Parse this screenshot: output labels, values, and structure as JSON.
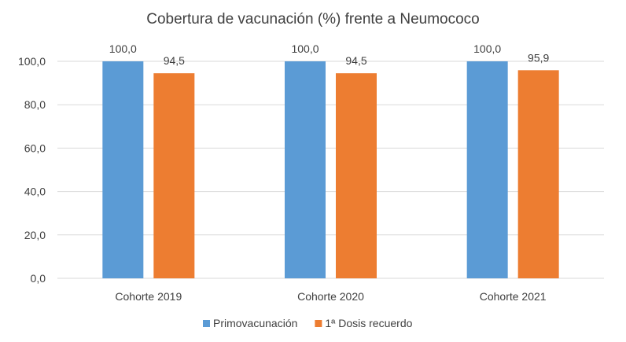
{
  "chart_data": {
    "type": "bar",
    "title": "Cobertura de vacunación (%) frente a Neumococo",
    "xlabel": "",
    "ylabel": "",
    "categories": [
      "Cohorte 2019",
      "Cohorte 2020",
      "Cohorte 2021"
    ],
    "series": [
      {
        "name": "Primovacunación",
        "values": [
          100.0,
          100.0,
          100.0
        ],
        "labels": [
          "100,0",
          "100,0",
          "100,0"
        ],
        "color": "#5B9BD5"
      },
      {
        "name": "1ª Dosis recuerdo",
        "values": [
          94.5,
          94.5,
          95.9
        ],
        "labels": [
          "94,5",
          "94,5",
          "95,9"
        ],
        "color": "#ED7D31"
      }
    ],
    "ylim": [
      0,
      100
    ],
    "yticks": [
      0,
      20,
      40,
      60,
      80,
      100
    ],
    "ytick_labels": [
      "0,0",
      "20,0",
      "40,0",
      "60,0",
      "80,0",
      "100,0"
    ],
    "grid": true,
    "legend_position": "bottom"
  }
}
